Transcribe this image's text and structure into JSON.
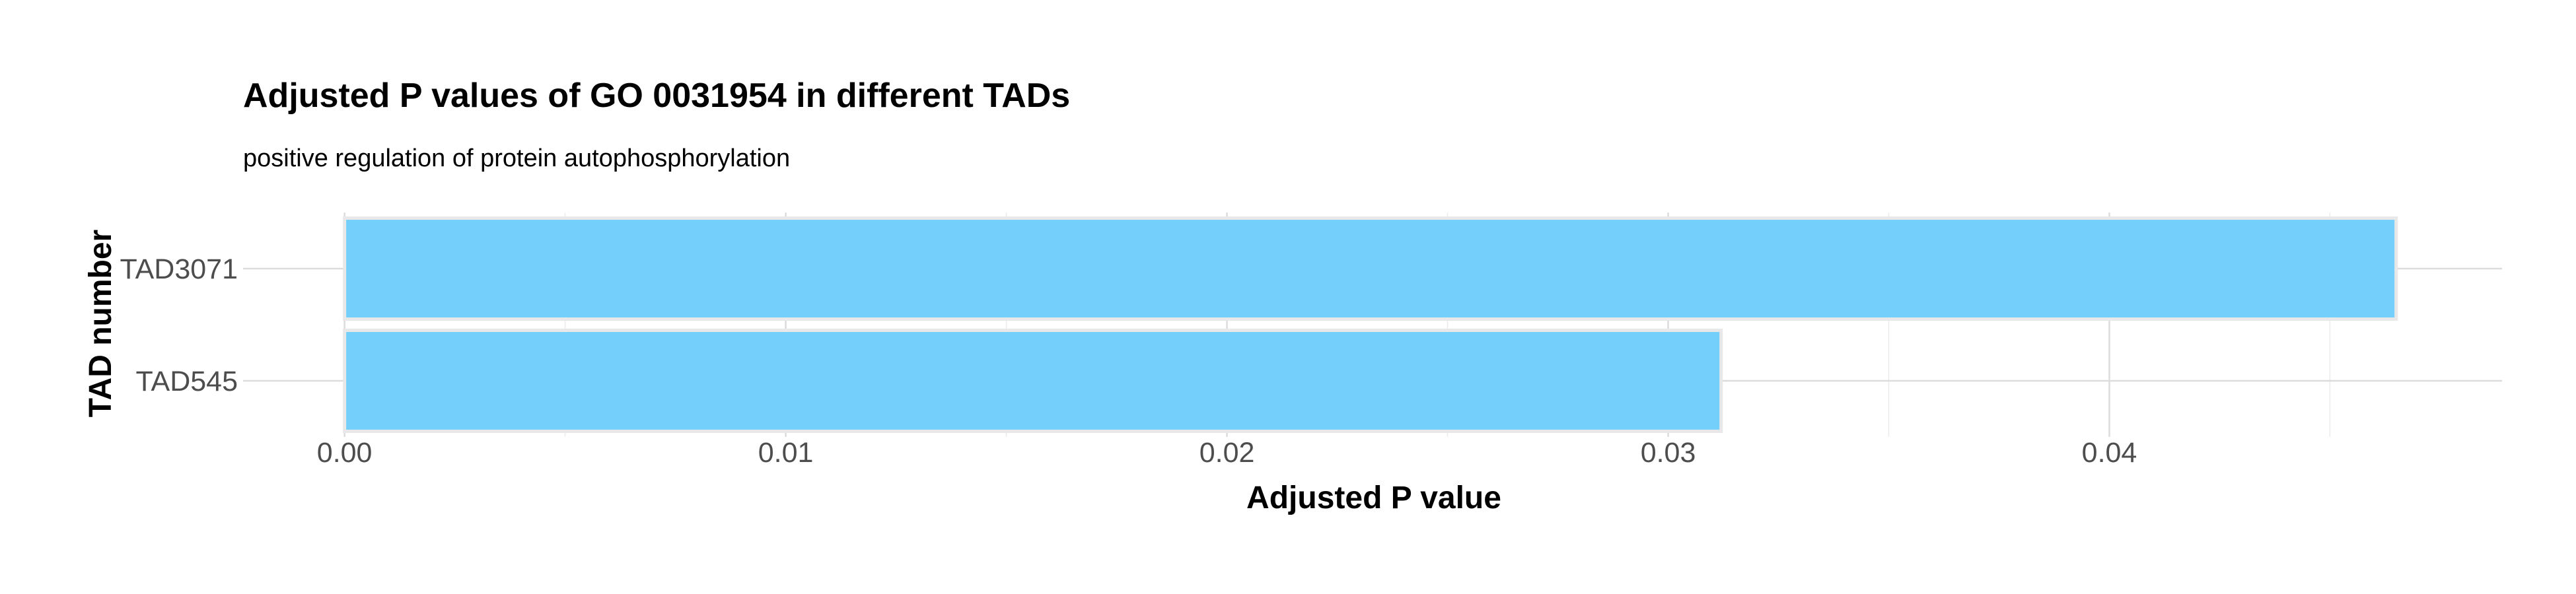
{
  "chart_data": {
    "type": "bar",
    "orientation": "horizontal",
    "title": "Adjusted P values of GO 0031954 in different TADs",
    "subtitle": "positive regulation of protein autophosphorylation",
    "xlabel": "Adjusted P value",
    "ylabel": "TAD number",
    "categories": [
      "TAD3071",
      "TAD545"
    ],
    "values": [
      0.0465,
      0.0312
    ],
    "xlim": [
      -0.0023,
      0.0489
    ],
    "x_ticks": [
      0.0,
      0.01,
      0.02,
      0.03,
      0.04
    ],
    "x_tick_labels": [
      "0.00",
      "0.01",
      "0.02",
      "0.03",
      "0.04"
    ],
    "bar_color": "#74CFFA",
    "grid": true,
    "legend": "none"
  }
}
